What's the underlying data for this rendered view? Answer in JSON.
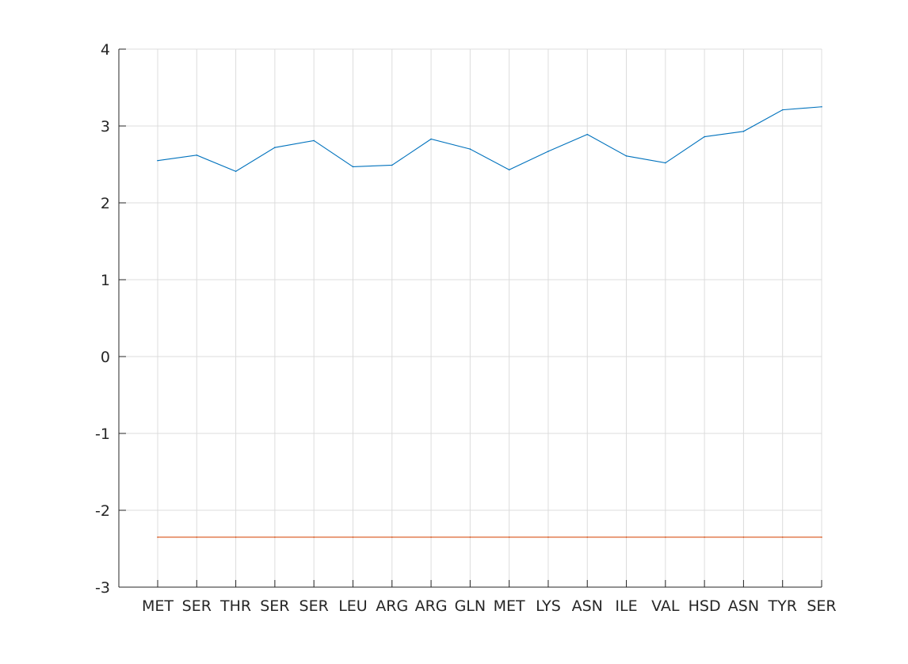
{
  "chart_data": {
    "type": "line",
    "title": "",
    "xlabel": "",
    "ylabel": "",
    "categories": [
      "MET",
      "SER",
      "THR",
      "SER",
      "SER",
      "LEU",
      "ARG",
      "ARG",
      "GLN",
      "MET",
      "LYS",
      "ASN",
      "ILE",
      "VAL",
      "HSD",
      "ASN",
      "TYR",
      "SER"
    ],
    "ylim": [
      -3,
      4
    ],
    "yticks": [
      -3,
      -2,
      -1,
      0,
      1,
      2,
      3,
      4
    ],
    "ytick_labels": [
      "-3",
      "-2",
      "-1",
      "0",
      "1",
      "2",
      "3",
      "4"
    ],
    "grid": true,
    "series": [
      {
        "color": "#0072bd",
        "values": [
          2.55,
          2.62,
          2.41,
          2.72,
          2.81,
          2.47,
          2.49,
          2.83,
          2.7,
          2.43,
          2.67,
          2.89,
          2.61,
          2.52,
          2.86,
          2.93,
          3.21,
          3.25
        ]
      },
      {
        "color": "#d95319",
        "values": [
          -2.35,
          -2.35,
          -2.35,
          -2.35,
          -2.35,
          -2.35,
          -2.35,
          -2.35,
          -2.35,
          -2.35,
          -2.35,
          -2.35,
          -2.35,
          -2.35,
          -2.35,
          -2.35,
          -2.35,
          -2.35
        ]
      }
    ]
  }
}
